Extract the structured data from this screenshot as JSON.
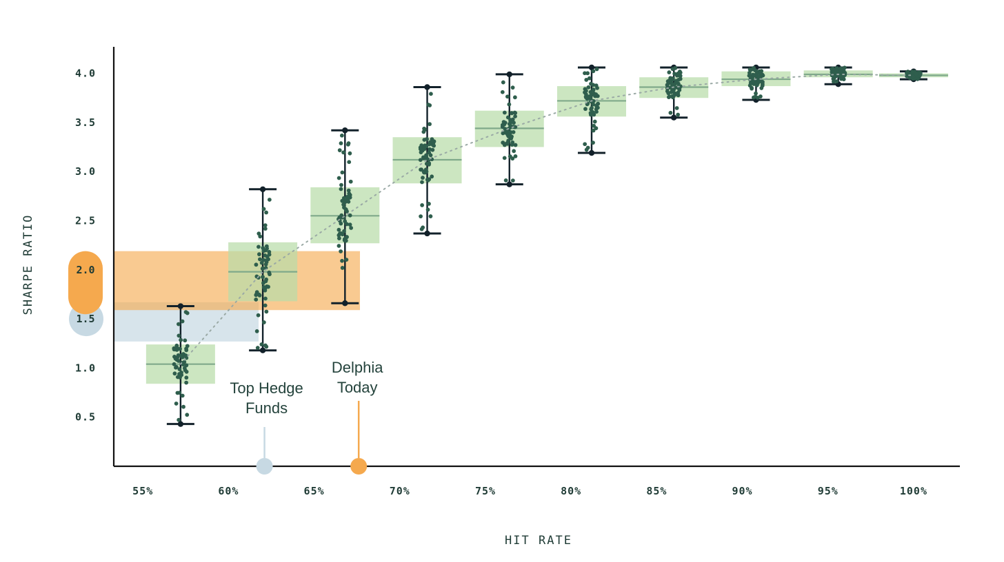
{
  "chart_data": {
    "type": "box",
    "xlabel": "HIT RATE",
    "ylabel": "SHARPE RATIO",
    "x_ticks": [
      "55%",
      "60%",
      "65%",
      "70%",
      "75%",
      "80%",
      "85%",
      "90%",
      "95%",
      "100%"
    ],
    "y_ticks": [
      "0.5",
      "1.0",
      "1.5",
      "2.0",
      "2.5",
      "3.0",
      "3.5",
      "4.0"
    ],
    "xlim": [
      53.3,
      102.7
    ],
    "ylim": [
      0.0,
      4.27
    ],
    "grid": false,
    "legend": "none",
    "boxes": [
      {
        "hit_rate": 57.2,
        "min": 0.43,
        "q1": 0.84,
        "median": 1.04,
        "q3": 1.24,
        "max": 1.63
      },
      {
        "hit_rate": 62.0,
        "min": 1.18,
        "q1": 1.68,
        "median": 1.98,
        "q3": 2.28,
        "max": 2.82
      },
      {
        "hit_rate": 66.8,
        "min": 1.66,
        "q1": 2.27,
        "median": 2.55,
        "q3": 2.84,
        "max": 3.42
      },
      {
        "hit_rate": 71.6,
        "min": 2.37,
        "q1": 2.88,
        "median": 3.12,
        "q3": 3.35,
        "max": 3.86
      },
      {
        "hit_rate": 76.4,
        "min": 2.87,
        "q1": 3.25,
        "median": 3.44,
        "q3": 3.62,
        "max": 3.99
      },
      {
        "hit_rate": 81.2,
        "min": 3.19,
        "q1": 3.56,
        "median": 3.72,
        "q3": 3.87,
        "max": 4.06
      },
      {
        "hit_rate": 86.0,
        "min": 3.55,
        "q1": 3.75,
        "median": 3.86,
        "q3": 3.96,
        "max": 4.06
      },
      {
        "hit_rate": 90.8,
        "min": 3.73,
        "q1": 3.87,
        "median": 3.94,
        "q3": 4.02,
        "max": 4.06
      },
      {
        "hit_rate": 95.6,
        "min": 3.89,
        "q1": 3.96,
        "median": 3.99,
        "q3": 4.03,
        "max": 4.06
      },
      {
        "hit_rate": 100.0,
        "min": 3.94,
        "q1": 3.96,
        "median": 3.98,
        "q3": 4.0,
        "max": 4.02
      }
    ],
    "references": [
      {
        "label": "Top Hedge Funds",
        "hit_rate": 62.1,
        "sharpe": 1.5,
        "sharpe_low": 1.27,
        "sharpe_high": 1.67,
        "marker_label": "1.5",
        "color": "#c7d9e3"
      },
      {
        "label": "Delphia Today",
        "hit_rate": 67.6,
        "sharpe": 2.0,
        "sharpe_low": 1.59,
        "sharpe_high": 2.19,
        "marker_label": "2.0",
        "color": "#f5a94e"
      }
    ],
    "colors": {
      "box_fill": "#b8dca9",
      "median_line": "#7fa98a",
      "whisker": "#12212a",
      "points": "#2f5e4d",
      "trend": "#9aa9a5",
      "axis": "#111111",
      "text": "#1f3b35"
    }
  }
}
